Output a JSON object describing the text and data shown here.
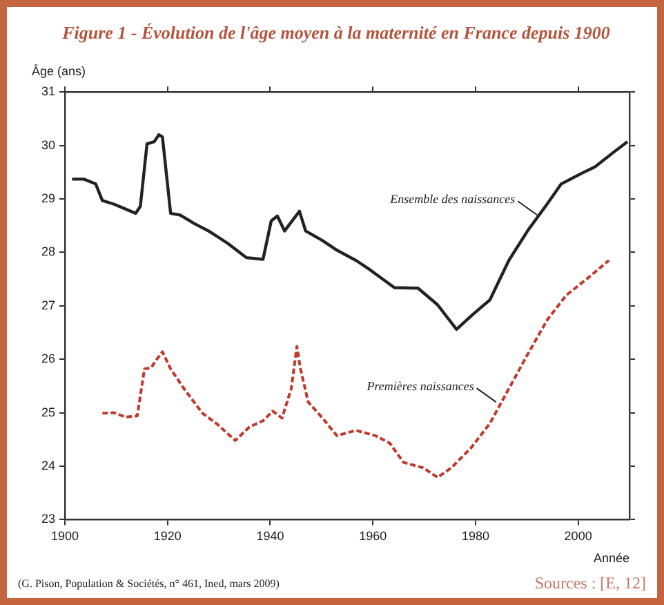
{
  "chart_data": {
    "type": "line",
    "title": "Figure 1 - Évolution de l'âge moyen à la maternité en France depuis 1900",
    "ylabel": "Âge (ans)",
    "xlabel": "Année",
    "xlim": [
      1900,
      2010
    ],
    "xticks": [
      1900,
      1920,
      1940,
      1960,
      1980,
      2000
    ],
    "ylim": [
      23,
      31
    ],
    "yticks": [
      23,
      24,
      25,
      26,
      27,
      28,
      29,
      30,
      31
    ],
    "grid": false,
    "legend": false,
    "marker": "none",
    "series": [
      {
        "color": "#222222",
        "line_style": "solid",
        "x": [
          1901.4,
          1903.7,
          1906,
          1907.3,
          1909.6,
          1913.8,
          1914.7,
          1916,
          1917.4,
          1918.3,
          1919,
          1920.6,
          1922.4,
          1925.2,
          1928,
          1931.7,
          1935.4,
          1938.6,
          1940.2,
          1941.4,
          1942.8,
          1944.6,
          1945.7,
          1946.9,
          1950.2,
          1953,
          1956.7,
          1959.5,
          1964.2,
          1968.8,
          1972.6,
          1976.3,
          1979.5,
          1982.8,
          1986.5,
          1990.2,
          1994,
          1996.7,
          2000.5,
          2003.3,
          2007,
          2009.6
        ],
        "values": [
          29.37,
          29.37,
          29.28,
          28.97,
          28.9,
          28.73,
          28.86,
          30.03,
          30.07,
          30.2,
          30.16,
          28.73,
          28.7,
          28.54,
          28.4,
          28.17,
          27.9,
          27.87,
          28.59,
          28.68,
          28.4,
          28.63,
          28.77,
          28.4,
          28.22,
          28.04,
          27.85,
          27.67,
          27.34,
          27.33,
          27.02,
          26.56,
          26.84,
          27.11,
          27.85,
          28.41,
          28.91,
          29.28,
          29.47,
          29.6,
          29.88,
          30.07
        ]
      },
      {
        "color": "#c0392b",
        "line_style": "dashed",
        "x": [
          1907.3,
          1909.6,
          1911.8,
          1914.1,
          1915.5,
          1916.8,
          1917.9,
          1919,
          1920.6,
          1923.2,
          1926.8,
          1929.5,
          1933.2,
          1935.9,
          1938.6,
          1940.5,
          1942.3,
          1944.1,
          1945.2,
          1945.9,
          1947.4,
          1950.2,
          1953,
          1956.7,
          1960.5,
          1963.3,
          1966,
          1969.8,
          1972.6,
          1975.3,
          1979.1,
          1982.8,
          1986.5,
          1990.2,
          1994,
          1997.7,
          2001.4,
          2006
        ],
        "values": [
          24.99,
          25,
          24.92,
          24.94,
          25.82,
          25.84,
          26,
          26.14,
          25.82,
          25.45,
          24.99,
          24.8,
          24.48,
          24.73,
          24.85,
          25.03,
          24.9,
          25.45,
          26.24,
          25.82,
          25.2,
          24.9,
          24.57,
          24.67,
          24.57,
          24.43,
          24.07,
          23.97,
          23.79,
          23.97,
          24.34,
          24.8,
          25.45,
          26.1,
          26.74,
          27.2,
          27.48,
          27.85
        ]
      }
    ],
    "annotations": [
      {
        "text": "Ensemble des naissances",
        "x": 1992,
        "y": 28.7
      },
      {
        "text": "Premières naissances",
        "x": 1984,
        "y": 25.2
      },
      "(G. Pison, Population & Sociétés, n° 461, Ined, mars 2009)",
      "Sources : [E, 12]"
    ]
  }
}
